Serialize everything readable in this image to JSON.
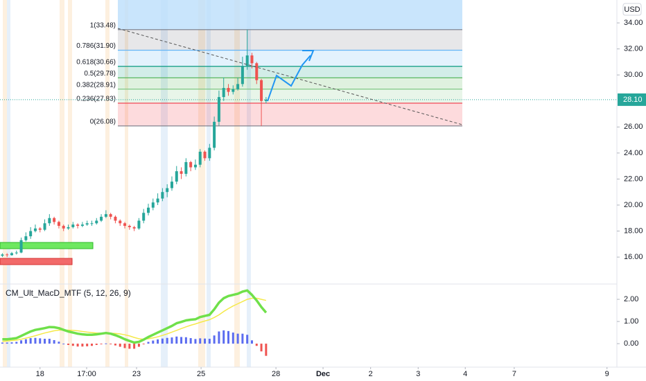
{
  "chart_data": {
    "type": "candlestick",
    "currency": "USD",
    "up_color": "#26a69a",
    "down_color": "#ef5350",
    "open": [
      16.1,
      16.2,
      16.15,
      16.3,
      16.35,
      17.3,
      17.6,
      18.0,
      18.2,
      18.1,
      18.6,
      19.0,
      18.7,
      18.4,
      18.2,
      18.3,
      18.5,
      18.4,
      18.5,
      18.6,
      18.6,
      18.8,
      19.1,
      19.3,
      19.1,
      18.8,
      18.6,
      18.4,
      18.3,
      18.2,
      18.8,
      19.4,
      19.8,
      20.2,
      20.5,
      21.0,
      21.3,
      21.8,
      22.6,
      22.4,
      23.3,
      22.9,
      23.1,
      24.1,
      23.6,
      24.4,
      26.4,
      28.3,
      29.0,
      28.7,
      28.9,
      29.3,
      30.7,
      31.5,
      30.9,
      29.6,
      28.0
    ],
    "high": [
      16.3,
      16.3,
      16.4,
      16.5,
      17.5,
      17.9,
      18.3,
      18.5,
      18.3,
      18.9,
      19.3,
      19.1,
      18.8,
      18.5,
      18.5,
      18.7,
      18.6,
      18.7,
      18.8,
      18.8,
      19.0,
      19.3,
      19.6,
      19.4,
      19.2,
      18.9,
      18.7,
      18.5,
      18.4,
      19.0,
      19.7,
      20.1,
      20.5,
      20.9,
      21.3,
      21.6,
      22.2,
      23.0,
      22.9,
      23.6,
      23.4,
      23.5,
      24.3,
      24.2,
      24.7,
      26.8,
      28.8,
      29.8,
      29.3,
      29.2,
      29.8,
      31.4,
      33.48,
      31.7,
      31.0,
      29.7,
      28.3
    ],
    "low": [
      16.0,
      16.0,
      16.1,
      16.2,
      16.3,
      17.2,
      17.4,
      17.9,
      17.9,
      18.0,
      18.4,
      18.5,
      18.2,
      18.0,
      18.1,
      18.2,
      18.2,
      18.3,
      18.4,
      18.4,
      18.5,
      18.7,
      19.0,
      18.9,
      18.6,
      18.4,
      18.2,
      18.1,
      18.0,
      18.1,
      18.6,
      19.2,
      19.6,
      20.0,
      20.3,
      20.6,
      21.1,
      21.6,
      22.0,
      22.2,
      22.6,
      22.7,
      22.9,
      23.4,
      23.4,
      24.2,
      26.1,
      28.0,
      28.4,
      28.5,
      28.8,
      29.1,
      30.4,
      30.5,
      29.3,
      26.08,
      27.8
    ],
    "close": [
      16.2,
      16.15,
      16.3,
      16.35,
      17.3,
      17.6,
      18.0,
      18.2,
      18.1,
      18.6,
      19.0,
      18.7,
      18.4,
      18.2,
      18.3,
      18.5,
      18.4,
      18.5,
      18.6,
      18.6,
      18.8,
      19.1,
      19.3,
      19.1,
      18.8,
      18.6,
      18.4,
      18.3,
      18.2,
      18.8,
      19.4,
      19.8,
      20.2,
      20.5,
      21.0,
      21.3,
      21.8,
      22.6,
      22.4,
      23.3,
      22.9,
      23.1,
      24.1,
      23.6,
      24.4,
      26.4,
      28.3,
      29.0,
      28.7,
      28.9,
      29.3,
      30.7,
      31.5,
      30.9,
      29.6,
      28.0,
      28.1
    ],
    "xlim": [
      0,
      131
    ],
    "xticks": [
      {
        "value": 8.5,
        "label": "18"
      },
      {
        "value": 18.4,
        "label": "17:00"
      },
      {
        "value": 29.0,
        "label": "23"
      },
      {
        "value": 42.7,
        "label": "25"
      },
      {
        "value": 58.6,
        "label": "28"
      },
      {
        "value": 68.6,
        "label": "Dec"
      },
      {
        "value": 78.7,
        "label": "2"
      },
      {
        "value": 88.8,
        "label": "3"
      },
      {
        "value": 98.8,
        "label": "4"
      },
      {
        "value": 109.2,
        "label": "7"
      },
      {
        "value": 128.9,
        "label": "9"
      }
    ],
    "ylim": [
      13.93,
      35.76
    ],
    "yticks": [
      {
        "value": 16,
        "label": "16.00"
      },
      {
        "value": 18,
        "label": "18.00"
      },
      {
        "value": 20,
        "label": "20.00"
      },
      {
        "value": 22,
        "label": "22.00"
      },
      {
        "value": 24,
        "label": "24.00"
      },
      {
        "value": 26,
        "label": "26.00"
      },
      {
        "value": 30,
        "label": "30.00"
      },
      {
        "value": 32,
        "label": "32.00"
      },
      {
        "value": 34,
        "label": "34.00"
      }
    ],
    "last_price": {
      "value": 28.1,
      "label": "28.10",
      "color": "#26a69a"
    },
    "fib_levels": [
      {
        "value": 33.48,
        "label": "1(33.48)",
        "color": "#787b86"
      },
      {
        "value": 31.9,
        "label": "0.786(31.90)",
        "color": "#64b5f6"
      },
      {
        "value": 30.66,
        "label": "0.618(30.66)",
        "color": "#089981"
      },
      {
        "value": 29.78,
        "label": "0.5(29.78)",
        "color": "#4caf50"
      },
      {
        "value": 28.91,
        "label": "0.382(28.91)",
        "color": "#81c784"
      },
      {
        "value": 27.83,
        "label": "0.236(27.83)",
        "color": "#f23645"
      },
      {
        "value": 26.08,
        "label": "0(26.08)",
        "color": "#787b86"
      }
    ],
    "indicator": {
      "type": "macd",
      "title": "CM_Ult_MacD_MTF (5, 12, 26, 9)",
      "macd_color": "#6fe04a",
      "signal_color": "#f5e94a",
      "hist_pos_color": "#5b6cf0",
      "hist_neg_color": "#ef5350",
      "macd": [
        0.2,
        0.2,
        0.22,
        0.25,
        0.35,
        0.45,
        0.55,
        0.62,
        0.66,
        0.7,
        0.75,
        0.74,
        0.7,
        0.62,
        0.55,
        0.5,
        0.45,
        0.42,
        0.4,
        0.4,
        0.42,
        0.45,
        0.48,
        0.45,
        0.38,
        0.3,
        0.2,
        0.12,
        0.05,
        0.08,
        0.18,
        0.3,
        0.4,
        0.5,
        0.6,
        0.7,
        0.8,
        0.92,
        0.98,
        1.05,
        1.08,
        1.1,
        1.2,
        1.25,
        1.3,
        1.55,
        1.85,
        2.05,
        2.15,
        2.2,
        2.25,
        2.35,
        2.4,
        2.2,
        1.95,
        1.65,
        1.4
      ],
      "signal": [
        0.1,
        0.12,
        0.14,
        0.16,
        0.2,
        0.25,
        0.3,
        0.36,
        0.42,
        0.48,
        0.53,
        0.58,
        0.61,
        0.62,
        0.61,
        0.6,
        0.58,
        0.55,
        0.52,
        0.5,
        0.48,
        0.47,
        0.47,
        0.47,
        0.46,
        0.44,
        0.4,
        0.35,
        0.28,
        0.22,
        0.2,
        0.22,
        0.26,
        0.31,
        0.37,
        0.44,
        0.52,
        0.6,
        0.68,
        0.76,
        0.83,
        0.89,
        0.96,
        1.02,
        1.08,
        1.18,
        1.3,
        1.45,
        1.58,
        1.7,
        1.8,
        1.9,
        2.0,
        2.05,
        2.05,
        2.0,
        1.95
      ],
      "histogram": [
        0.05,
        0.05,
        0.06,
        0.08,
        0.15,
        0.2,
        0.25,
        0.26,
        0.24,
        0.22,
        0.22,
        0.16,
        0.09,
        0.0,
        -0.06,
        -0.1,
        -0.13,
        -0.13,
        -0.12,
        -0.1,
        -0.06,
        -0.02,
        0.01,
        -0.02,
        -0.08,
        -0.14,
        -0.2,
        -0.23,
        -0.23,
        -0.14,
        -0.02,
        0.08,
        0.14,
        0.19,
        0.23,
        0.26,
        0.28,
        0.32,
        0.3,
        0.29,
        0.25,
        0.21,
        0.24,
        0.23,
        0.22,
        0.37,
        0.55,
        0.6,
        0.57,
        0.5,
        0.45,
        0.45,
        0.4,
        0.15,
        -0.1,
        -0.35,
        -0.55
      ],
      "ylim": [
        -1.06,
        2.69
      ],
      "yticks": [
        {
          "value": 0,
          "label": "0.00"
        },
        {
          "value": 1,
          "label": "1.00"
        },
        {
          "value": 2,
          "label": "2.00"
        }
      ]
    }
  }
}
